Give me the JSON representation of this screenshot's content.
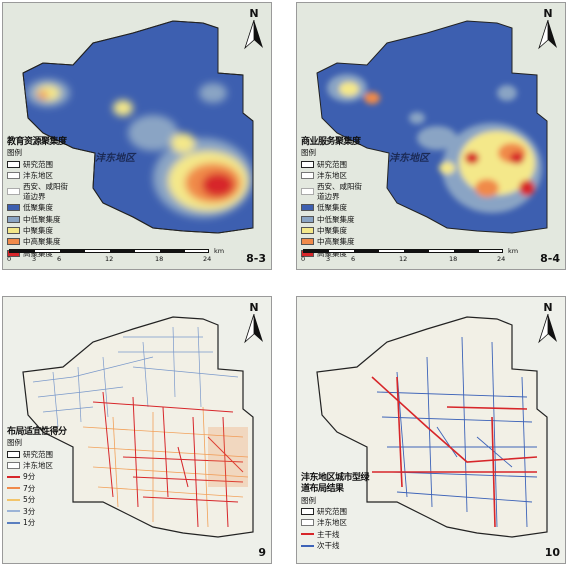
{
  "compass": {
    "letter": "N"
  },
  "scale": {
    "ticks": [
      "0",
      "3",
      "6",
      "12",
      "18",
      "24"
    ],
    "unit": "km"
  },
  "panels": [
    {
      "number": "8-3",
      "title": "教育资源聚集度",
      "legend_label": "图例",
      "area_label": "沣东地区",
      "boundary_items": [
        "研究范围",
        "沣东地区",
        "西安、咸阳街道边界"
      ],
      "classes": [
        {
          "label": "低聚集度",
          "color": "#3d5fb0"
        },
        {
          "label": "中低聚集度",
          "color": "#8aa4c4"
        },
        {
          "label": "中聚集度",
          "color": "#f4e88a"
        },
        {
          "label": "中高聚集度",
          "color": "#f08a4a"
        },
        {
          "label": "高聚集度",
          "color": "#d7262a"
        }
      ]
    },
    {
      "number": "8-4",
      "title": "商业服务聚集度",
      "legend_label": "图例",
      "area_label": "沣东地区",
      "boundary_items": [
        "研究范围",
        "沣东地区",
        "西安、咸阳街道边界"
      ],
      "classes": [
        {
          "label": "低聚集度",
          "color": "#3d5fb0"
        },
        {
          "label": "中低聚集度",
          "color": "#8aa4c4"
        },
        {
          "label": "中聚集度",
          "color": "#f4e88a"
        },
        {
          "label": "中高聚集度",
          "color": "#f08a4a"
        },
        {
          "label": "高聚集度",
          "color": "#d7262a"
        }
      ]
    },
    {
      "number": "9",
      "title": "布局适宜性得分",
      "legend_label": "图例",
      "boundary_items": [
        "研究范围",
        "沣东地区"
      ],
      "scores": [
        {
          "label": "9分",
          "color": "#d7262a"
        },
        {
          "label": "7分",
          "color": "#f08a4a"
        },
        {
          "label": "5分",
          "color": "#f2c46a"
        },
        {
          "label": "3分",
          "color": "#9bb3d6"
        },
        {
          "label": "1分",
          "color": "#5a7fc0"
        }
      ]
    },
    {
      "number": "10",
      "title": "沣东地区城市型绿道布局结果",
      "legend_label": "图例",
      "boundary_items": [
        "研究范围",
        "沣东地区"
      ],
      "lines": [
        {
          "label": "主干线",
          "color": "#d7262a"
        },
        {
          "label": "次干线",
          "color": "#3d63b8"
        }
      ]
    }
  ]
}
